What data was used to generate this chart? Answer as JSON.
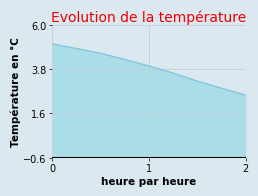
{
  "title": "Evolution de la température",
  "title_color": "#ee0000",
  "xlabel": "heure par heure",
  "ylabel": "Température en °C",
  "x": [
    0,
    0.25,
    0.5,
    0.75,
    1.0,
    1.25,
    1.5,
    1.75,
    2.0
  ],
  "y": [
    5.05,
    4.82,
    4.58,
    4.28,
    3.95,
    3.6,
    3.2,
    2.85,
    2.5
  ],
  "ylim": [
    -0.6,
    6.0
  ],
  "xlim": [
    0,
    2
  ],
  "yticks": [
    -0.6,
    1.6,
    3.8,
    6.0
  ],
  "xticks": [
    0,
    1,
    2
  ],
  "line_color": "#7cc8dc",
  "fill_color": "#aadde8",
  "fill_alpha": 1.0,
  "bg_color": "#dce8ef",
  "plot_bg_color": "#dce8ef",
  "grid_color": "#c0cfd8",
  "baseline": -0.6,
  "title_fontsize": 10,
  "label_fontsize": 7.5,
  "tick_fontsize": 7
}
